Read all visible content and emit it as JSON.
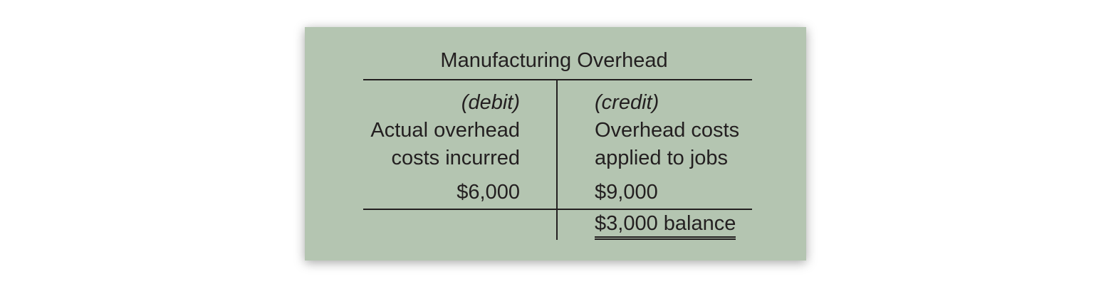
{
  "t_account": {
    "title": "Manufacturing Overhead",
    "debit": {
      "heading": "(debit)",
      "desc_line1": "Actual overhead",
      "desc_line2": "costs incurred",
      "amount": "$6,000"
    },
    "credit": {
      "heading": "(credit)",
      "desc_line1": "Overhead costs",
      "desc_line2": "applied to jobs",
      "amount": "$9,000",
      "balance": "$3,000 balance"
    },
    "colors": {
      "background": "#b4c5b1",
      "ink": "#231f20"
    }
  }
}
